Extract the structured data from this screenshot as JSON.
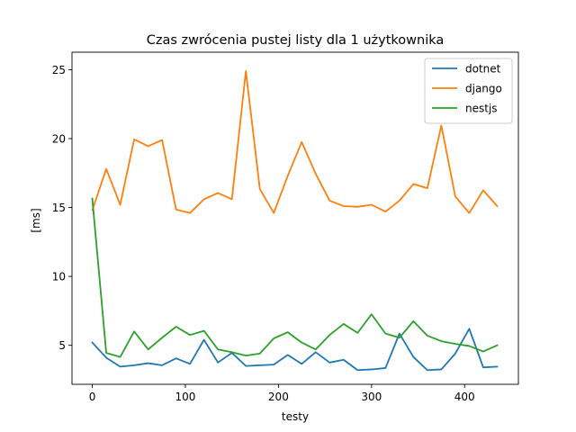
{
  "chart_data": {
    "type": "line",
    "title": "Czas zwrócenia pustej listy dla 1 użytkownika",
    "xlabel": "testy",
    "ylabel": "[ms]",
    "xlim": [
      -21.8,
      457.8
    ],
    "ylim": [
      2.17,
      26.27
    ],
    "x_ticks": [
      0,
      100,
      200,
      300,
      400
    ],
    "y_ticks": [
      5,
      10,
      15,
      20,
      25
    ],
    "grid": false,
    "legend_position": "top-right",
    "x": [
      0,
      15,
      30,
      45,
      60,
      75,
      90,
      105,
      120,
      135,
      150,
      165,
      180,
      195,
      210,
      225,
      240,
      255,
      270,
      285,
      300,
      315,
      330,
      345,
      360,
      375,
      390,
      405,
      420,
      435
    ],
    "series": [
      {
        "name": "dotnet",
        "color": "#1f77b4",
        "values": [
          5.2,
          4.1,
          3.45,
          3.55,
          3.7,
          3.55,
          4.05,
          3.65,
          5.4,
          3.75,
          4.45,
          3.5,
          3.55,
          3.6,
          4.3,
          3.65,
          4.5,
          3.75,
          3.95,
          3.2,
          3.25,
          3.35,
          5.85,
          4.15,
          3.2,
          3.25,
          4.4,
          6.2,
          3.4,
          3.45
        ]
      },
      {
        "name": "django",
        "color": "#ff7f0e",
        "values": [
          14.8,
          17.8,
          15.2,
          19.95,
          19.45,
          19.9,
          14.85,
          14.6,
          15.6,
          16.05,
          15.6,
          24.9,
          16.35,
          14.6,
          17.3,
          19.75,
          17.45,
          15.5,
          15.1,
          15.05,
          15.2,
          14.7,
          15.5,
          16.7,
          16.4,
          20.95,
          15.8,
          14.6,
          16.25,
          15.1
        ]
      },
      {
        "name": "nestjs",
        "color": "#2ca02c",
        "values": [
          15.65,
          4.45,
          4.15,
          6.0,
          4.7,
          5.55,
          6.35,
          5.75,
          6.05,
          4.7,
          4.5,
          4.25,
          4.4,
          5.5,
          5.95,
          5.2,
          4.7,
          5.75,
          6.55,
          5.9,
          7.25,
          5.85,
          5.55,
          6.75,
          5.7,
          5.3,
          5.1,
          4.95,
          4.55,
          5.0
        ]
      }
    ]
  }
}
